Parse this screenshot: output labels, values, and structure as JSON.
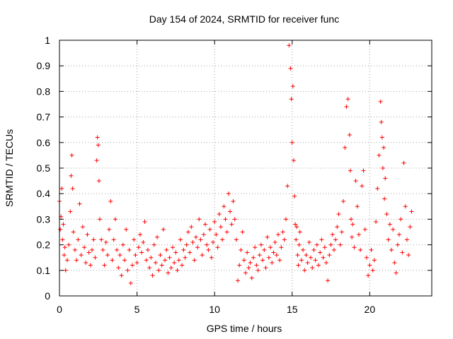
{
  "chart_data": {
    "type": "scatter",
    "title": "Day 154 of 2024, SRMTID for receiver func",
    "xlabel": "GPS time / hours",
    "ylabel": "SRMTID / TECUs",
    "xlim": [
      0,
      24
    ],
    "ylim": [
      0,
      1
    ],
    "xticks": [
      0,
      5,
      10,
      15,
      20
    ],
    "xtick_labels": [
      "0",
      "5",
      "10",
      "15",
      "20"
    ],
    "yticks": [
      0,
      0.1,
      0.2,
      0.3,
      0.4,
      0.5,
      0.6,
      0.7,
      0.8,
      0.9,
      1
    ],
    "ytick_labels": [
      "0",
      "0.1",
      "0.2",
      "0.3",
      "0.4",
      "0.5",
      "0.6",
      "0.7",
      "0.8",
      "0.9",
      "1"
    ],
    "grid": true,
    "marker": "+",
    "color": "#ff0000",
    "series": [
      {
        "name": "SRMTID",
        "x": [
          0.0,
          0.05,
          0.1,
          0.15,
          0.2,
          0.25,
          0.3,
          0.35,
          0.4,
          0.5,
          0.6,
          0.7,
          0.75,
          0.8,
          0.85,
          0.9,
          1.0,
          1.1,
          1.2,
          1.3,
          1.4,
          1.5,
          1.6,
          1.7,
          1.8,
          1.9,
          2.0,
          2.1,
          2.2,
          2.3,
          2.4,
          2.45,
          2.5,
          2.55,
          2.6,
          2.7,
          2.8,
          2.9,
          3.0,
          3.1,
          3.2,
          3.3,
          3.4,
          3.5,
          3.6,
          3.7,
          3.8,
          3.9,
          4.0,
          4.1,
          4.2,
          4.3,
          4.4,
          4.5,
          4.6,
          4.7,
          4.8,
          4.9,
          5.0,
          5.1,
          5.2,
          5.3,
          5.4,
          5.5,
          5.6,
          5.7,
          5.8,
          5.9,
          6.0,
          6.1,
          6.2,
          6.3,
          6.4,
          6.5,
          6.6,
          6.7,
          6.8,
          6.9,
          7.0,
          7.1,
          7.2,
          7.3,
          7.4,
          7.5,
          7.6,
          7.7,
          7.8,
          7.9,
          8.0,
          8.1,
          8.2,
          8.3,
          8.4,
          8.5,
          8.6,
          8.7,
          8.8,
          8.9,
          9.0,
          9.1,
          9.2,
          9.3,
          9.4,
          9.5,
          9.6,
          9.7,
          9.8,
          9.9,
          10.0,
          10.1,
          10.2,
          10.3,
          10.4,
          10.5,
          10.6,
          10.7,
          10.8,
          10.9,
          11.0,
          11.1,
          11.2,
          11.3,
          11.4,
          11.5,
          11.6,
          11.7,
          11.8,
          11.9,
          12.0,
          12.1,
          12.2,
          12.3,
          12.4,
          12.5,
          12.6,
          12.7,
          12.8,
          12.9,
          13.0,
          13.1,
          13.2,
          13.3,
          13.4,
          13.5,
          13.6,
          13.7,
          13.8,
          13.9,
          14.0,
          14.1,
          14.2,
          14.3,
          14.4,
          14.5,
          14.6,
          14.7,
          14.8,
          14.9,
          14.95,
          15.0,
          15.05,
          15.1,
          15.15,
          15.2,
          15.25,
          15.3,
          15.35,
          15.4,
          15.45,
          15.5,
          15.6,
          15.7,
          15.8,
          15.9,
          16.0,
          16.1,
          16.2,
          16.3,
          16.4,
          16.5,
          16.6,
          16.7,
          16.8,
          16.9,
          17.0,
          17.1,
          17.2,
          17.3,
          17.4,
          17.5,
          17.6,
          17.7,
          17.8,
          17.9,
          18.0,
          18.1,
          18.2,
          18.3,
          18.4,
          18.5,
          18.6,
          18.7,
          18.75,
          18.8,
          18.85,
          18.9,
          19.0,
          19.1,
          19.2,
          19.3,
          19.4,
          19.5,
          19.6,
          19.7,
          19.8,
          19.9,
          20.0,
          20.1,
          20.2,
          20.3,
          20.4,
          20.5,
          20.6,
          20.7,
          20.75,
          20.8,
          20.85,
          20.9,
          20.95,
          21.0,
          21.1,
          21.2,
          21.3,
          21.4,
          21.5,
          21.6,
          21.7,
          21.8,
          21.9,
          22.0,
          22.1,
          22.2,
          22.3,
          22.4,
          22.5,
          22.6,
          22.7
        ],
        "y": [
          0.37,
          0.26,
          0.31,
          0.42,
          0.22,
          0.28,
          0.16,
          0.19,
          0.1,
          0.14,
          0.2,
          0.33,
          0.47,
          0.55,
          0.42,
          0.25,
          0.18,
          0.14,
          0.22,
          0.36,
          0.16,
          0.27,
          0.19,
          0.13,
          0.24,
          0.17,
          0.12,
          0.18,
          0.22,
          0.15,
          0.53,
          0.62,
          0.59,
          0.45,
          0.3,
          0.22,
          0.18,
          0.12,
          0.21,
          0.16,
          0.26,
          0.37,
          0.14,
          0.22,
          0.3,
          0.18,
          0.11,
          0.16,
          0.08,
          0.2,
          0.14,
          0.26,
          0.1,
          0.18,
          0.05,
          0.12,
          0.22,
          0.16,
          0.13,
          0.19,
          0.24,
          0.17,
          0.21,
          0.29,
          0.14,
          0.18,
          0.11,
          0.15,
          0.08,
          0.2,
          0.13,
          0.23,
          0.1,
          0.16,
          0.12,
          0.26,
          0.14,
          0.18,
          0.09,
          0.15,
          0.11,
          0.19,
          0.13,
          0.17,
          0.1,
          0.14,
          0.22,
          0.12,
          0.18,
          0.15,
          0.2,
          0.25,
          0.17,
          0.27,
          0.21,
          0.14,
          0.23,
          0.19,
          0.3,
          0.22,
          0.16,
          0.24,
          0.28,
          0.2,
          0.18,
          0.26,
          0.15,
          0.21,
          0.29,
          0.24,
          0.19,
          0.32,
          0.27,
          0.22,
          0.35,
          0.3,
          0.25,
          0.4,
          0.33,
          0.28,
          0.37,
          0.3,
          0.22,
          0.06,
          0.12,
          0.18,
          0.25,
          0.14,
          0.09,
          0.17,
          0.11,
          0.13,
          0.07,
          0.15,
          0.19,
          0.12,
          0.1,
          0.16,
          0.2,
          0.14,
          0.18,
          0.11,
          0.23,
          0.15,
          0.19,
          0.13,
          0.17,
          0.21,
          0.16,
          0.24,
          0.14,
          0.19,
          0.25,
          0.22,
          0.3,
          0.43,
          0.98,
          0.89,
          0.77,
          0.6,
          0.82,
          0.53,
          0.39,
          0.28,
          0.22,
          0.27,
          0.16,
          0.12,
          0.2,
          0.25,
          0.14,
          0.18,
          0.1,
          0.16,
          0.13,
          0.21,
          0.15,
          0.11,
          0.18,
          0.14,
          0.2,
          0.12,
          0.17,
          0.22,
          0.15,
          0.19,
          0.13,
          0.06,
          0.16,
          0.2,
          0.24,
          0.18,
          0.22,
          0.27,
          0.32,
          0.2,
          0.25,
          0.37,
          0.58,
          0.74,
          0.77,
          0.63,
          0.49,
          0.3,
          0.23,
          0.28,
          0.19,
          0.45,
          0.35,
          0.24,
          0.18,
          0.43,
          0.49,
          0.26,
          0.15,
          0.08,
          0.12,
          0.18,
          0.1,
          0.14,
          0.29,
          0.42,
          0.55,
          0.76,
          0.68,
          0.62,
          0.5,
          0.58,
          0.38,
          0.46,
          0.32,
          0.22,
          0.28,
          0.18,
          0.26,
          0.13,
          0.09,
          0.2,
          0.24,
          0.3,
          0.17,
          0.52,
          0.35,
          0.22,
          0.16,
          0.27,
          0.33
        ]
      }
    ]
  }
}
